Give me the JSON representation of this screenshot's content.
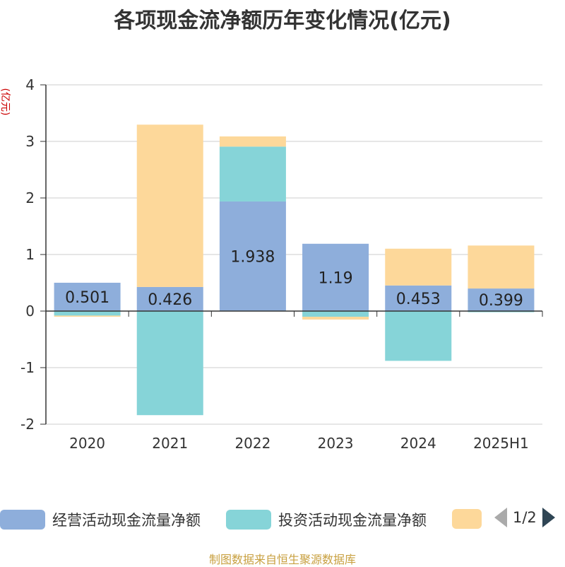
{
  "title": "各项现金流净额历年变化情况(亿元)",
  "source": "制图数据来自恒生聚源数据库",
  "legend_pager": {
    "text": "1/2"
  },
  "colors": {
    "operating": "#8eaedb",
    "investing": "#86d4d8",
    "financing": "#fdd89a"
  },
  "chart_data": {
    "type": "bar",
    "stacked": true,
    "title": "各项现金流净额历年变化情况(亿元)",
    "ylabel": "(亿元)",
    "xlabel": "",
    "ylim": [
      -2,
      4
    ],
    "yticks": [
      "4",
      "3",
      "2",
      "1",
      "0",
      "-1",
      "-2"
    ],
    "ytick_values": [
      4,
      3,
      2,
      1,
      0,
      -1,
      -2
    ],
    "categories": [
      "2020",
      "2021",
      "2022",
      "2023",
      "2024",
      "2025H1"
    ],
    "grid": true,
    "legend_position": "bottom",
    "series": [
      {
        "name": "经营活动现金流量净额",
        "values": [
          0.501,
          0.426,
          1.938,
          1.19,
          0.453,
          0.399
        ],
        "labels": [
          "0.501",
          "0.426",
          "1.938",
          "1.19",
          "0.453",
          "0.399"
        ]
      },
      {
        "name": "投资活动现金流量净额",
        "values": [
          -0.08,
          -1.84,
          0.97,
          -0.1,
          -0.88,
          -0.02
        ]
      },
      {
        "name": "",
        "values": [
          -0.02,
          2.87,
          0.18,
          -0.05,
          0.65,
          0.76
        ]
      }
    ]
  }
}
